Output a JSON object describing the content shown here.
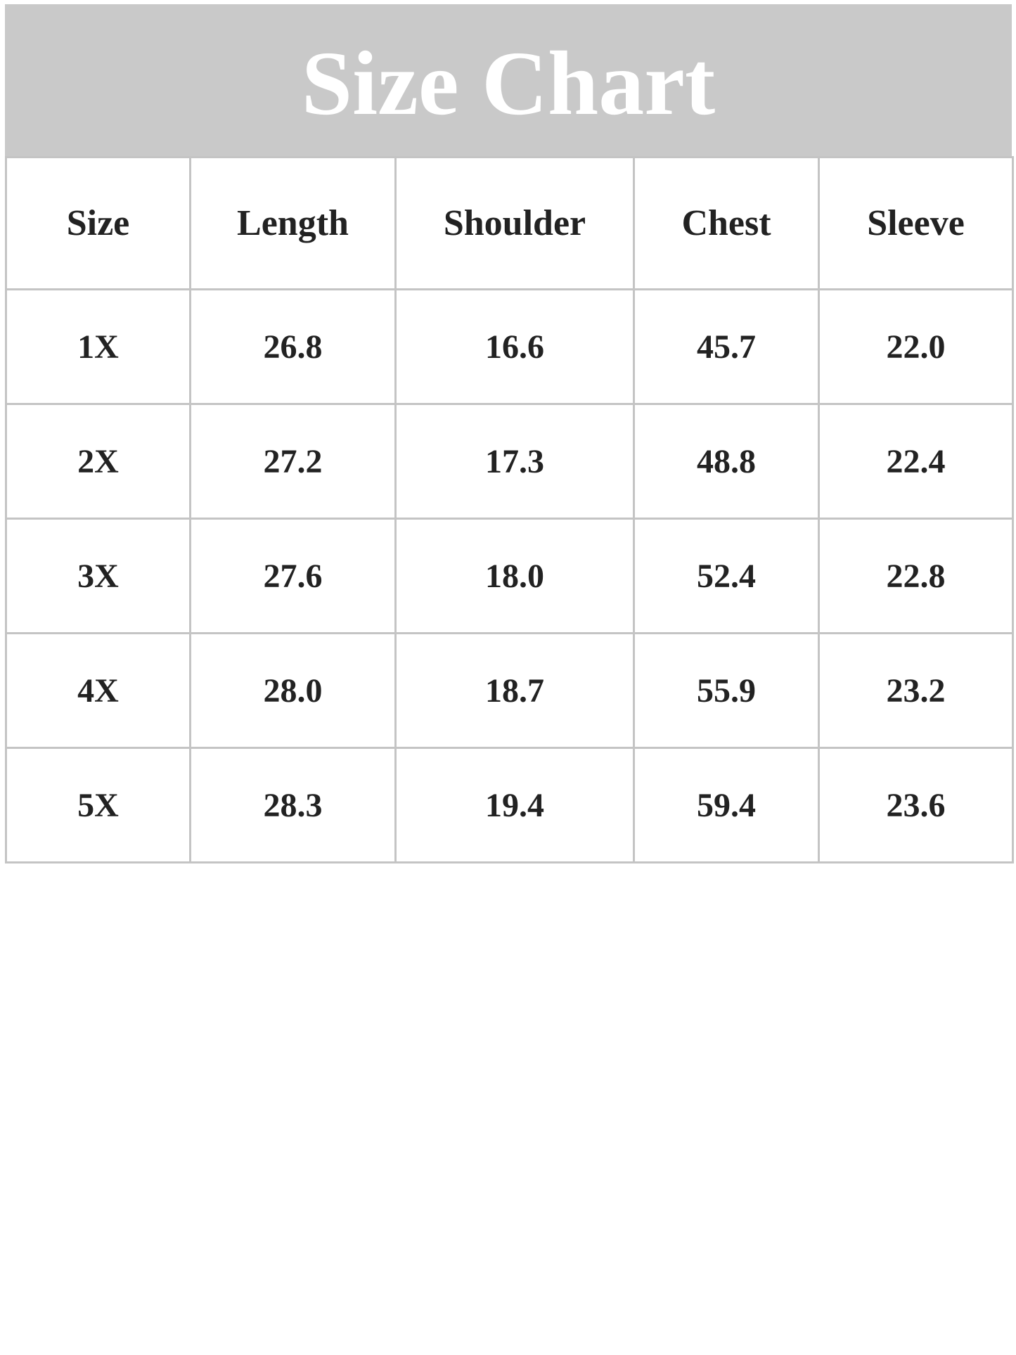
{
  "title": "Size Chart",
  "colors": {
    "header_bg": "#c9c9c9",
    "border": "#c4c4c4",
    "text": "#222222"
  },
  "chart_data": {
    "type": "table",
    "title": "Size Chart",
    "columns": [
      "Size",
      "Length",
      "Shoulder",
      "Chest",
      "Sleeve"
    ],
    "rows": [
      [
        "1X",
        "26.8",
        "16.6",
        "45.7",
        "22.0"
      ],
      [
        "2X",
        "27.2",
        "17.3",
        "48.8",
        "22.4"
      ],
      [
        "3X",
        "27.6",
        "18.0",
        "52.4",
        "22.8"
      ],
      [
        "4X",
        "28.0",
        "18.7",
        "55.9",
        "23.2"
      ],
      [
        "5X",
        "28.3",
        "19.4",
        "59.4",
        "23.6"
      ]
    ]
  }
}
